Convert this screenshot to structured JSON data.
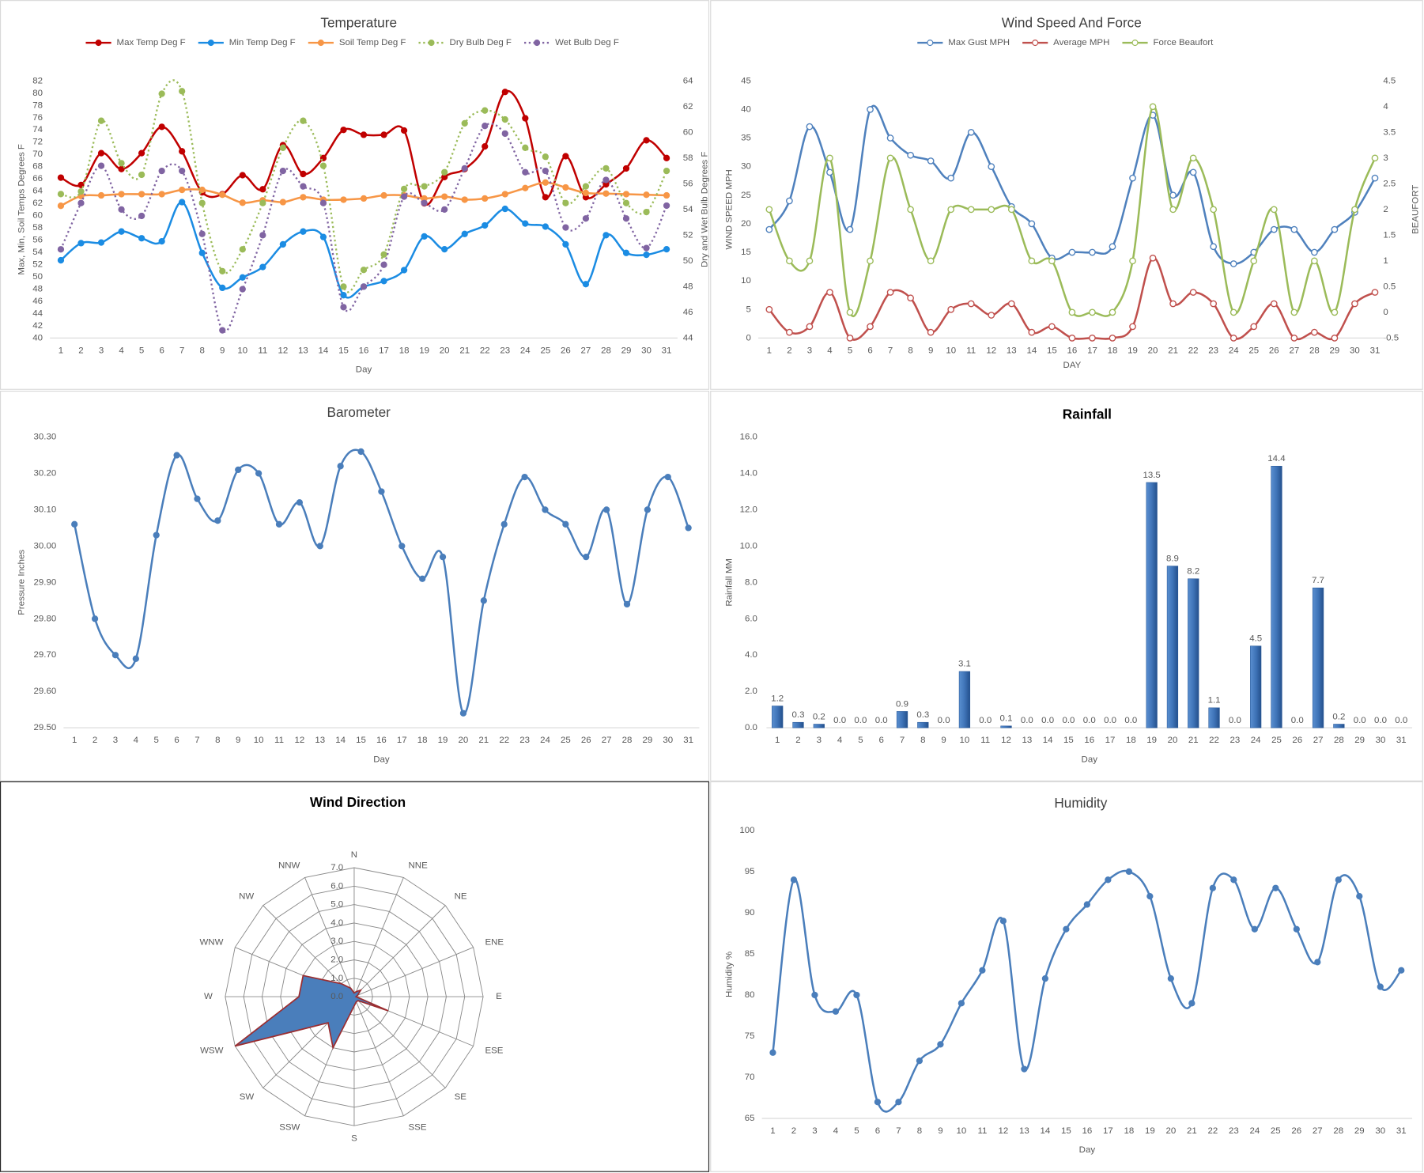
{
  "chart_data": [
    {
      "type": "line",
      "title": "Temperature",
      "legend": "top",
      "x_label": "Day",
      "y_label": "Max, Min, Soil Temps Degrees F",
      "y2_label": "Dry and Wet Bulb Degrees F",
      "categories": [
        "1",
        "2",
        "3",
        "4",
        "5",
        "6",
        "7",
        "8",
        "9",
        "10",
        "11",
        "12",
        "13",
        "14",
        "15",
        "16",
        "17",
        "18",
        "19",
        "20",
        "21",
        "22",
        "23",
        "24",
        "25",
        "26",
        "27",
        "28",
        "29",
        "30",
        "31"
      ],
      "ylim": [
        40,
        82
      ],
      "yticks": [
        40,
        42,
        44,
        46,
        48,
        50,
        52,
        54,
        56,
        58,
        60,
        62,
        64,
        66,
        68,
        70,
        72,
        74,
        76,
        78,
        80,
        82
      ],
      "y2lim": [
        44,
        64
      ],
      "y2ticks": [
        44,
        46,
        48,
        50,
        52,
        54,
        56,
        58,
        60,
        62,
        64
      ],
      "series": [
        {
          "name": "Max Temp Deg F",
          "color": "#c00000",
          "style": "solid",
          "marker": "filled",
          "values": [
            66.2,
            65,
            70.2,
            67.6,
            70.2,
            74.5,
            70.5,
            63.8,
            63.5,
            66.6,
            64.3,
            71.5,
            66.8,
            69.4,
            74,
            73.2,
            73.2,
            73.9,
            62,
            66.3,
            67.6,
            71.3,
            80.2,
            75.9,
            63,
            69.7,
            63,
            65.1,
            67.7,
            72.3,
            69.4
          ]
        },
        {
          "name": "Min Temp Deg F",
          "color": "#1b8ce3",
          "style": "solid",
          "marker": "filled",
          "values": [
            52.7,
            55.5,
            55.6,
            57.4,
            56.3,
            55.8,
            62.2,
            53.9,
            48.2,
            49.9,
            51.6,
            55.3,
            57.4,
            56.5,
            47,
            48.4,
            49.3,
            51.1,
            56.6,
            54.5,
            57,
            58.4,
            61.1,
            58.7,
            58.2,
            55.3,
            48.8,
            56.8,
            53.9,
            53.6,
            54.5
          ]
        },
        {
          "name": "Soil Temp Deg F",
          "color": "#f79646",
          "style": "solid",
          "marker": "filled",
          "values": [
            61.6,
            63.2,
            63.3,
            63.5,
            63.5,
            63.5,
            64.2,
            64.2,
            63.4,
            62.1,
            62.5,
            62.2,
            63,
            62.6,
            62.6,
            62.8,
            63.3,
            63.3,
            62.8,
            63.1,
            62.6,
            62.8,
            63.5,
            64.5,
            65.4,
            64.6,
            63.7,
            63.6,
            63.5,
            63.4,
            63.3
          ]
        },
        {
          "name": "Dry Bulb Deg F",
          "color": "#9bbb59",
          "style": "dotted",
          "marker": "filled",
          "axis": "y2",
          "values": [
            55.2,
            55.4,
            60.9,
            57.6,
            56.7,
            63,
            63.2,
            54.5,
            49.2,
            50.9,
            54.5,
            58.8,
            60.9,
            57.4,
            48,
            49.3,
            50.5,
            55.6,
            55.8,
            56.9,
            60.7,
            61.7,
            61,
            58.8,
            58.1,
            54.5,
            55.8,
            57.2,
            54.5,
            53.8,
            57
          ]
        },
        {
          "name": "Wet Bulb Deg F",
          "color": "#8064a2",
          "style": "dotted",
          "marker": "filled",
          "axis": "y2",
          "values": [
            50.9,
            54.5,
            57.4,
            54,
            53.5,
            57,
            57,
            52.1,
            44.6,
            47.8,
            52,
            57,
            55.8,
            54.5,
            46.4,
            48,
            49.7,
            55,
            54.5,
            54,
            57.2,
            60.5,
            59.9,
            56.9,
            57,
            52.6,
            53.3,
            56.3,
            53.3,
            51,
            54.3
          ]
        }
      ]
    },
    {
      "type": "line",
      "title": "Wind Speed And Force",
      "legend": "top",
      "x_label": "DAY",
      "y_label": "WIND SPEED MPH",
      "y2_label": "BEAUFORT",
      "categories": [
        "1",
        "2",
        "3",
        "4",
        "5",
        "6",
        "7",
        "8",
        "9",
        "10",
        "11",
        "12",
        "13",
        "14",
        "15",
        "16",
        "17",
        "18",
        "19",
        "20",
        "21",
        "22",
        "23",
        "24",
        "25",
        "26",
        "27",
        "28",
        "29",
        "30",
        "31"
      ],
      "ylim": [
        0,
        45
      ],
      "yticks": [
        0,
        5,
        10,
        15,
        20,
        25,
        30,
        35,
        40,
        45
      ],
      "y2lim": [
        -0.5,
        4.5
      ],
      "y2ticks": [
        -0.5,
        0,
        0.5,
        1,
        1.5,
        2,
        2.5,
        3,
        3.5,
        4,
        4.5
      ],
      "series": [
        {
          "name": "Max Gust MPH",
          "color": "#4f81bd",
          "style": "solid",
          "marker": "hollow",
          "values": [
            19,
            24,
            37,
            29,
            19,
            40,
            35,
            32,
            31,
            28,
            36,
            30,
            23,
            20,
            14,
            15,
            15,
            16,
            28,
            39,
            25,
            29,
            16,
            13,
            15,
            19,
            19,
            15,
            19,
            22,
            28
          ]
        },
        {
          "name": "Average MPH",
          "color": "#c0504d",
          "style": "solid",
          "marker": "hollow",
          "values": [
            5,
            1,
            2,
            8,
            0,
            2,
            8,
            7,
            1,
            5,
            6,
            4,
            6,
            1,
            2,
            0,
            0,
            0,
            2,
            14,
            6,
            8,
            6,
            0,
            2,
            6,
            0,
            1,
            0,
            6,
            8
          ]
        },
        {
          "name": "Force Beaufort",
          "color": "#9bbb59",
          "style": "solid",
          "marker": "hollow",
          "axis": "y2",
          "values": [
            2,
            1,
            1,
            3,
            0,
            1,
            3,
            2,
            1,
            2,
            2,
            2,
            2,
            1,
            1,
            0,
            0,
            0,
            1,
            4,
            2,
            3,
            2,
            0,
            1,
            2,
            0,
            1,
            0,
            2,
            3
          ]
        }
      ]
    },
    {
      "type": "line",
      "title": "Barometer",
      "x_label": "Day",
      "y_label": "Pressure Inches",
      "categories": [
        "1",
        "2",
        "3",
        "4",
        "5",
        "6",
        "7",
        "8",
        "9",
        "10",
        "11",
        "12",
        "13",
        "14",
        "15",
        "16",
        "17",
        "18",
        "19",
        "20",
        "21",
        "22",
        "23",
        "24",
        "25",
        "26",
        "27",
        "28",
        "29",
        "30",
        "31"
      ],
      "ylim": [
        29.5,
        30.3
      ],
      "yticks": [
        {
          "value": 29.5,
          "label": "29.50"
        },
        {
          "value": 29.6,
          "label": "29.60"
        },
        {
          "value": 29.7,
          "label": "29.70"
        },
        {
          "value": 29.8,
          "label": "29.80"
        },
        {
          "value": 29.9,
          "label": "29.90"
        },
        {
          "value": 30,
          "label": "30.00"
        },
        {
          "value": 30.1,
          "label": "30.10"
        },
        {
          "value": 30.2,
          "label": "30.20"
        },
        {
          "value": 30.3,
          "label": "30.30"
        }
      ],
      "series": [
        {
          "color": "#4a7ebb",
          "style": "solid",
          "marker": "filled",
          "values": [
            30.06,
            29.8,
            29.7,
            29.69,
            30.03,
            30.25,
            30.13,
            30.07,
            30.21,
            30.2,
            30.06,
            30.12,
            30,
            30.22,
            30.26,
            30.15,
            30,
            29.91,
            29.97,
            29.54,
            29.85,
            30.06,
            30.19,
            30.1,
            30.06,
            29.97,
            30.1,
            29.84,
            30.1,
            30.19,
            30.05
          ]
        }
      ]
    },
    {
      "type": "bar",
      "title": "Rainfall",
      "x_label": "Day",
      "y_label": "Rainfall MM",
      "color": "#3f74b8",
      "categories": [
        "1",
        "2",
        "3",
        "4",
        "5",
        "6",
        "7",
        "8",
        "9",
        "10",
        "11",
        "12",
        "13",
        "14",
        "15",
        "16",
        "17",
        "18",
        "19",
        "20",
        "21",
        "22",
        "23",
        "24",
        "25",
        "26",
        "27",
        "28",
        "29",
        "30",
        "31"
      ],
      "ylim": [
        0,
        16
      ],
      "yticks": [
        {
          "value": 0,
          "label": "0.0"
        },
        {
          "value": 2,
          "label": "2.0"
        },
        {
          "value": 4,
          "label": "4.0"
        },
        {
          "value": 6,
          "label": "6.0"
        },
        {
          "value": 8,
          "label": "8.0"
        },
        {
          "value": 10,
          "label": "10.0"
        },
        {
          "value": 12,
          "label": "12.0"
        },
        {
          "value": 14,
          "label": "14.0"
        },
        {
          "value": 16,
          "label": "16.0"
        }
      ],
      "values": [
        1.2,
        0.3,
        0.2,
        0,
        0,
        0,
        0.9,
        0.3,
        0,
        3.1,
        0,
        0.1,
        0,
        0,
        0,
        0,
        0,
        0,
        13.5,
        8.9,
        8.2,
        1.1,
        0,
        4.5,
        14.4,
        0,
        7.7,
        0.2,
        0,
        0,
        0
      ],
      "value_labels": [
        "1.2",
        "0.3",
        "0.2",
        "0.0",
        "0.0",
        "0.0",
        "0.9",
        "0.3",
        "0.0",
        "3.1",
        "0.0",
        "0.1",
        "0.0",
        "0.0",
        "0.0",
        "0.0",
        "0.0",
        "0.0",
        "13.5",
        "8.9",
        "8.2",
        "1.1",
        "0.0",
        "4.5",
        "14.4",
        "0.0",
        "7.7",
        "0.2",
        "0.0",
        "0.0",
        "0.0"
      ]
    },
    {
      "type": "radar",
      "title": "Wind Direction",
      "color": "#4a7ebb",
      "edge_color": "#9b2d30",
      "categories": [
        "N",
        "NNE",
        "NE",
        "ENE",
        "E",
        "ESE",
        "SE",
        "SSE",
        "S",
        "SSW",
        "SW",
        "WSW",
        "W",
        "WNW",
        "NW",
        "NNW"
      ],
      "ylim": [
        0,
        7
      ],
      "yticks": [
        {
          "value": 0,
          "label": "0.0"
        },
        {
          "value": 1,
          "label": "1.0"
        },
        {
          "value": 2,
          "label": "2.0"
        },
        {
          "value": 3,
          "label": "3.0"
        },
        {
          "value": 4,
          "label": "4.0"
        },
        {
          "value": 5,
          "label": "5.0"
        },
        {
          "value": 6,
          "label": "6.0"
        },
        {
          "value": 7,
          "label": "7.0"
        }
      ],
      "values": [
        0.2,
        0.3,
        0.5,
        0.2,
        0.1,
        2,
        0.3,
        0.3,
        0.5,
        3,
        2,
        7,
        3,
        3,
        1,
        0.5
      ]
    },
    {
      "type": "line",
      "title": "Humidity",
      "x_label": "Day",
      "y_label": "Humidity %",
      "categories": [
        "1",
        "2",
        "3",
        "4",
        "5",
        "6",
        "7",
        "8",
        "9",
        "10",
        "11",
        "12",
        "13",
        "14",
        "15",
        "16",
        "17",
        "18",
        "19",
        "20",
        "21",
        "22",
        "23",
        "24",
        "25",
        "26",
        "27",
        "28",
        "29",
        "30",
        "31"
      ],
      "ylim": [
        65,
        100
      ],
      "yticks": [
        65,
        70,
        75,
        80,
        85,
        90,
        95,
        100
      ],
      "series": [
        {
          "color": "#4a7ebb",
          "style": "solid",
          "marker": "filled",
          "values": [
            73,
            94,
            80,
            78,
            80,
            67,
            67,
            72,
            74,
            79,
            83,
            89,
            71,
            82,
            88,
            91,
            94,
            95,
            92,
            82,
            79,
            93,
            94,
            88,
            93,
            88,
            84,
            94,
            92,
            81,
            83
          ]
        }
      ]
    }
  ]
}
